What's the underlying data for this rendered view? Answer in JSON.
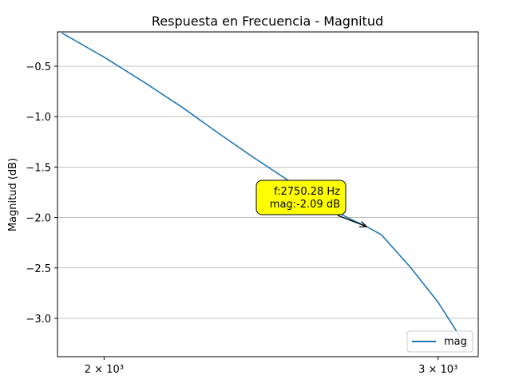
{
  "chart_data": {
    "type": "line",
    "title": "Respuesta en Frecuencia - Magnitud",
    "xlabel": "",
    "ylabel": "Magnitud (dB)",
    "xscale": "log",
    "xlim": [
      1890,
      3150
    ],
    "ylim": [
      -3.38,
      -0.16
    ],
    "grid": "y-major",
    "xticks": [
      {
        "value": 2000,
        "label": "2 × 10³"
      },
      {
        "value": 3000,
        "label": "3 × 10³"
      }
    ],
    "yticks": [
      {
        "value": -0.5,
        "label": "−0.5"
      },
      {
        "value": -1.0,
        "label": "−1.0"
      },
      {
        "value": -1.5,
        "label": "−1.5"
      },
      {
        "value": -2.0,
        "label": "−2.0"
      },
      {
        "value": -2.5,
        "label": "−2.5"
      },
      {
        "value": -3.0,
        "label": "−3.0"
      }
    ],
    "series": [
      {
        "name": "mag",
        "color": "#1f77b4",
        "x": [
          1900,
          2000,
          2100,
          2200,
          2300,
          2400,
          2500,
          2600,
          2700,
          2750.28,
          2800,
          2900,
          3000,
          3100
        ],
        "y": [
          -0.17,
          -0.41,
          -0.66,
          -0.91,
          -1.17,
          -1.41,
          -1.63,
          -1.86,
          -2.02,
          -2.09,
          -2.17,
          -2.49,
          -2.84,
          -3.26
        ]
      }
    ],
    "legend": {
      "position": "lower-right",
      "entries": [
        "mag"
      ]
    },
    "annotation": {
      "x": 2750.28,
      "y": -2.09,
      "lines": [
        "f:2750.28 Hz",
        "mag:-2.09 dB"
      ],
      "box_color": "#ffff00"
    }
  }
}
